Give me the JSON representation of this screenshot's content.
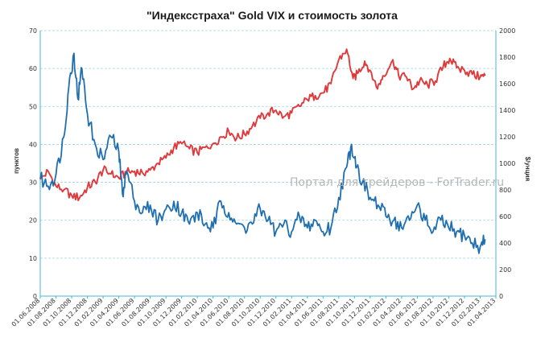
{
  "chart_data": {
    "type": "line",
    "title": "\"Индексстраха\" Gold VIX и стоимость золота",
    "ylabel_left": "пунктов",
    "ylabel_right": "$/унция",
    "ylim_left": [
      0,
      70
    ],
    "ylim_right": [
      0,
      2000
    ],
    "yticks_left": [
      "0",
      "10",
      "20",
      "30",
      "40",
      "50",
      "60",
      "70"
    ],
    "yticks_right": [
      "0",
      "200",
      "400",
      "600",
      "800",
      "1000",
      "1200",
      "1400",
      "1600",
      "1800",
      "2000"
    ],
    "x_ticks": [
      "01.06.2008",
      "01.08.2008",
      "01.10.2008",
      "01.12.2008",
      "01.02.2009",
      "01.04.2009",
      "01.06.2009",
      "01.08.2009",
      "01.10.2009",
      "01.12.2009",
      "01.02.2010",
      "01.04.2010",
      "01.06.2010",
      "01.08.2010",
      "01.10.2010",
      "01.12.2010",
      "01.02.2011",
      "01.04.2011",
      "01.06.2011",
      "01.08.2011",
      "01.10.2011",
      "01.12.2011",
      "01.02.2012",
      "01.04.2012",
      "01.06.2012",
      "01.08.2012",
      "01.10.2012",
      "01.12.2012",
      "01.02.2013",
      "01.04.2013"
    ],
    "grid": true,
    "watermark": "Портал для трейдеров - ForTrader.ru",
    "series": [
      {
        "axis": "left",
        "color": "#1f6fb0",
        "points": [
          [
            "2008-06-01",
            31
          ],
          [
            "2008-07-01",
            29
          ],
          [
            "2008-08-01",
            32
          ],
          [
            "2008-09-01",
            42
          ],
          [
            "2008-09-20",
            55
          ],
          [
            "2008-10-10",
            64
          ],
          [
            "2008-10-25",
            52
          ],
          [
            "2008-11-10",
            60
          ],
          [
            "2008-12-01",
            48
          ],
          [
            "2009-01-01",
            40
          ],
          [
            "2009-02-01",
            36
          ],
          [
            "2009-03-01",
            42
          ],
          [
            "2009-04-01",
            38
          ],
          [
            "2009-04-15",
            27
          ],
          [
            "2009-05-01",
            33
          ],
          [
            "2009-06-01",
            25
          ],
          [
            "2009-07-01",
            22
          ],
          [
            "2009-08-01",
            24
          ],
          [
            "2009-09-01",
            20
          ],
          [
            "2009-10-01",
            23
          ],
          [
            "2009-11-01",
            25
          ],
          [
            "2009-12-01",
            22
          ],
          [
            "2010-01-01",
            19
          ],
          [
            "2010-02-01",
            22
          ],
          [
            "2010-03-01",
            19
          ],
          [
            "2010-04-01",
            18
          ],
          [
            "2010-05-01",
            25
          ],
          [
            "2010-06-01",
            22
          ],
          [
            "2010-07-01",
            19
          ],
          [
            "2010-08-01",
            18
          ],
          [
            "2010-09-01",
            19
          ],
          [
            "2010-10-01",
            23
          ],
          [
            "2010-11-01",
            20
          ],
          [
            "2010-12-01",
            17
          ],
          [
            "2011-01-01",
            19
          ],
          [
            "2011-02-01",
            17
          ],
          [
            "2011-03-01",
            21
          ],
          [
            "2011-04-01",
            18
          ],
          [
            "2011-05-01",
            20
          ],
          [
            "2011-06-01",
            17
          ],
          [
            "2011-07-01",
            18
          ],
          [
            "2011-08-01",
            26
          ],
          [
            "2011-09-01",
            34
          ],
          [
            "2011-09-20",
            40
          ],
          [
            "2011-10-10",
            34
          ],
          [
            "2011-11-01",
            30
          ],
          [
            "2011-12-01",
            26
          ],
          [
            "2012-01-01",
            24
          ],
          [
            "2012-02-01",
            21
          ],
          [
            "2012-03-01",
            20
          ],
          [
            "2012-04-01",
            18
          ],
          [
            "2012-05-01",
            20
          ],
          [
            "2012-06-01",
            24
          ],
          [
            "2012-07-01",
            20
          ],
          [
            "2012-08-01",
            17
          ],
          [
            "2012-09-01",
            20
          ],
          [
            "2012-10-01",
            18
          ],
          [
            "2012-11-01",
            17
          ],
          [
            "2012-12-01",
            16
          ],
          [
            "2013-01-01",
            14
          ],
          [
            "2013-02-01",
            13
          ],
          [
            "2013-02-20",
            15
          ]
        ]
      },
      {
        "axis": "right",
        "color": "#e0393b",
        "points": [
          [
            "2008-06-01",
            880
          ],
          [
            "2008-07-01",
            940
          ],
          [
            "2008-08-01",
            830
          ],
          [
            "2008-09-01",
            800
          ],
          [
            "2008-10-01",
            760
          ],
          [
            "2008-11-01",
            740
          ],
          [
            "2008-12-01",
            820
          ],
          [
            "2009-01-01",
            860
          ],
          [
            "2009-02-01",
            950
          ],
          [
            "2009-03-01",
            920
          ],
          [
            "2009-04-01",
            890
          ],
          [
            "2009-05-01",
            930
          ],
          [
            "2009-06-01",
            940
          ],
          [
            "2009-07-01",
            930
          ],
          [
            "2009-08-01",
            950
          ],
          [
            "2009-09-01",
            1000
          ],
          [
            "2009-10-01",
            1040
          ],
          [
            "2009-11-01",
            1120
          ],
          [
            "2009-12-01",
            1150
          ],
          [
            "2010-01-01",
            1110
          ],
          [
            "2010-02-01",
            1080
          ],
          [
            "2010-03-01",
            1120
          ],
          [
            "2010-04-01",
            1150
          ],
          [
            "2010-05-01",
            1200
          ],
          [
            "2010-06-01",
            1240
          ],
          [
            "2010-07-01",
            1190
          ],
          [
            "2010-08-01",
            1220
          ],
          [
            "2010-09-01",
            1280
          ],
          [
            "2010-10-01",
            1340
          ],
          [
            "2010-11-01",
            1380
          ],
          [
            "2010-12-01",
            1400
          ],
          [
            "2011-01-01",
            1350
          ],
          [
            "2011-02-01",
            1380
          ],
          [
            "2011-03-01",
            1430
          ],
          [
            "2011-04-01",
            1480
          ],
          [
            "2011-05-01",
            1510
          ],
          [
            "2011-06-01",
            1530
          ],
          [
            "2011-07-01",
            1600
          ],
          [
            "2011-08-01",
            1780
          ],
          [
            "2011-09-01",
            1860
          ],
          [
            "2011-09-26",
            1640
          ],
          [
            "2011-10-15",
            1680
          ],
          [
            "2011-11-10",
            1770
          ],
          [
            "2011-12-01",
            1700
          ],
          [
            "2011-12-29",
            1560
          ],
          [
            "2012-01-20",
            1660
          ],
          [
            "2012-02-28",
            1780
          ],
          [
            "2012-03-20",
            1660
          ],
          [
            "2012-04-20",
            1650
          ],
          [
            "2012-05-15",
            1560
          ],
          [
            "2012-06-10",
            1620
          ],
          [
            "2012-07-10",
            1590
          ],
          [
            "2012-08-10",
            1620
          ],
          [
            "2012-09-10",
            1730
          ],
          [
            "2012-10-05",
            1790
          ],
          [
            "2012-11-01",
            1720
          ],
          [
            "2012-12-01",
            1700
          ],
          [
            "2013-01-01",
            1670
          ],
          [
            "2013-02-01",
            1650
          ],
          [
            "2013-02-20",
            1660
          ]
        ]
      }
    ]
  }
}
